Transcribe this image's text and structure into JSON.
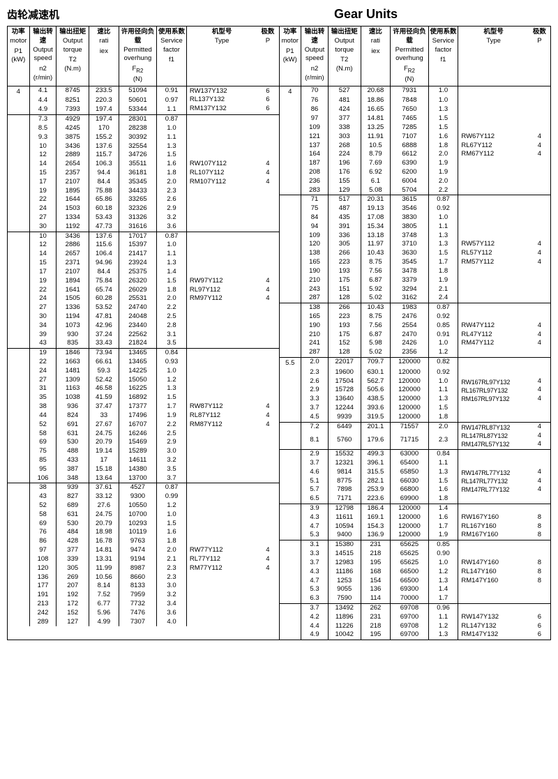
{
  "titles": {
    "left": "齿轮减速机",
    "right": "Gear Units"
  },
  "headers": {
    "p1_cn": "功率",
    "p1_en": "motor",
    "p1_sym": "P1",
    "p1_unit": "(kW)",
    "n2_cn": "输出转速",
    "n2_en": "Output speed",
    "n2_sym": "n2",
    "n2_unit": "(r/min)",
    "t2_cn": "输出扭矩",
    "t2_en": "Output torque",
    "t2_sym": "T2",
    "t2_unit": "(N.m)",
    "i_cn": "速比",
    "i_en": "rati",
    "i_sym": "iex",
    "fr_cn": "许用径向负载",
    "fr_en": "Permitted overhung",
    "fr_sym": "F",
    "fr_sub": "R2",
    "fr_unit": "(N)",
    "f1_cn": "使用系数",
    "f1_en": "Service factor",
    "f1_sym": "f1",
    "type_cn": "机型号",
    "type_en": "Type",
    "p_cn": "极数",
    "p_en": "P"
  },
  "left": {
    "motor": "4",
    "groups": [
      {
        "types": [
          "RW137Y132",
          "RL137Y132",
          "RM137Y132"
        ],
        "p": [
          "6",
          "6",
          "6"
        ],
        "rows": [
          [
            "4.1",
            "8745",
            "233.5",
            "51094",
            "0.91"
          ],
          [
            "4.4",
            "8251",
            "220.3",
            "50601",
            "0.97"
          ],
          [
            "4.9",
            "7393",
            "197.4",
            "53344",
            "1.1"
          ]
        ]
      },
      {
        "types": [
          "RW107Y112",
          "RL107Y112",
          "RM107Y112"
        ],
        "p": [
          "4",
          "4",
          "4"
        ],
        "rows": [
          [
            "7.3",
            "4929",
            "197.4",
            "28301",
            "0.87"
          ],
          [
            "8.5",
            "4245",
            "170",
            "28238",
            "1.0"
          ],
          [
            "9.3",
            "3875",
            "155.2",
            "30392",
            "1.1"
          ],
          [
            "10",
            "3436",
            "137.6",
            "32554",
            "1.3"
          ],
          [
            "12",
            "2889",
            "115.7",
            "34726",
            "1.5"
          ],
          [
            "14",
            "2654",
            "106.3",
            "35511",
            "1.6"
          ],
          [
            "15",
            "2357",
            "94.4",
            "36181",
            "1.8"
          ],
          [
            "17",
            "2107",
            "84.4",
            "35345",
            "2.0"
          ],
          [
            "19",
            "1895",
            "75.88",
            "34433",
            "2.3"
          ],
          [
            "22",
            "1644",
            "65.86",
            "33265",
            "2.6"
          ],
          [
            "24",
            "1503",
            "60.18",
            "32326",
            "2.9"
          ],
          [
            "27",
            "1334",
            "53.43",
            "31326",
            "3.2"
          ],
          [
            "30",
            "1192",
            "47.73",
            "31616",
            "3.6"
          ]
        ]
      },
      {
        "types": [
          "RW97Y112",
          "RL97Y112",
          "RM97Y112"
        ],
        "p": [
          "4",
          "4",
          "4"
        ],
        "rows": [
          [
            "10",
            "3436",
            "137.6",
            "17017",
            "0.87"
          ],
          [
            "12",
            "2886",
            "115.6",
            "15397",
            "1.0"
          ],
          [
            "14",
            "2657",
            "106.4",
            "21417",
            "1.1"
          ],
          [
            "15",
            "2371",
            "94.96",
            "23924",
            "1.3"
          ],
          [
            "17",
            "2107",
            "84.4",
            "25375",
            "1.4"
          ],
          [
            "19",
            "1894",
            "75.84",
            "26320",
            "1.5"
          ],
          [
            "22",
            "1641",
            "65.74",
            "26029",
            "1.8"
          ],
          [
            "24",
            "1505",
            "60.28",
            "25531",
            "2.0"
          ],
          [
            "27",
            "1336",
            "53.52",
            "24740",
            "2.2"
          ],
          [
            "30",
            "1194",
            "47.81",
            "24048",
            "2.5"
          ],
          [
            "34",
            "1073",
            "42.96",
            "23440",
            "2.8"
          ],
          [
            "39",
            "930",
            "37.24",
            "22562",
            "3.1"
          ],
          [
            "43",
            "835",
            "33.43",
            "21824",
            "3.5"
          ]
        ]
      },
      {
        "types": [
          "RW87Y112",
          "RL87Y112",
          "RM87Y112"
        ],
        "p": [
          "4",
          "4",
          "4"
        ],
        "rows": [
          [
            "19",
            "1846",
            "73.94",
            "13465",
            "0.84"
          ],
          [
            "22",
            "1663",
            "66.61",
            "13465",
            "0.93"
          ],
          [
            "24",
            "1481",
            "59.3",
            "14225",
            "1.0"
          ],
          [
            "27",
            "1309",
            "52.42",
            "15050",
            "1.2"
          ],
          [
            "31",
            "1163",
            "46.58",
            "16225",
            "1.3"
          ],
          [
            "35",
            "1038",
            "41.59",
            "16892",
            "1.5"
          ],
          [
            "38",
            "936",
            "37.47",
            "17377",
            "1.7"
          ],
          [
            "44",
            "824",
            "33",
            "17496",
            "1.9"
          ],
          [
            "52",
            "691",
            "27.67",
            "16707",
            "2.2"
          ],
          [
            "58",
            "631",
            "24.75",
            "16246",
            "2.5"
          ],
          [
            "69",
            "530",
            "20.79",
            "15469",
            "2.9"
          ],
          [
            "75",
            "488",
            "19.14",
            "15289",
            "3.0"
          ],
          [
            "85",
            "433",
            "17",
            "14611",
            "3.2"
          ],
          [
            "95",
            "387",
            "15.18",
            "14380",
            "3.5"
          ],
          [
            "106",
            "348",
            "13.64",
            "13700",
            "3.7"
          ]
        ]
      },
      {
        "types": [
          "RW77Y112",
          "RL77Y112",
          "RM77Y112"
        ],
        "p": [
          "4",
          "4",
          "4"
        ],
        "rows": [
          [
            "38",
            "939",
            "37.61",
            "4527",
            "0.87"
          ],
          [
            "43",
            "827",
            "33.12",
            "9300",
            "0.99"
          ],
          [
            "52",
            "689",
            "27.6",
            "10550",
            "1.2"
          ],
          [
            "58",
            "631",
            "24.75",
            "10700",
            "1.0"
          ],
          [
            "69",
            "530",
            "20.79",
            "10293",
            "1.5"
          ],
          [
            "76",
            "484",
            "18.98",
            "10119",
            "1.6"
          ],
          [
            "86",
            "428",
            "16.78",
            "9763",
            "1.8"
          ],
          [
            "97",
            "377",
            "14.81",
            "9474",
            "2.0"
          ],
          [
            "108",
            "339",
            "13.31",
            "9194",
            "2.1"
          ],
          [
            "120",
            "305",
            "11.99",
            "8987",
            "2.3"
          ],
          [
            "136",
            "269",
            "10.56",
            "8660",
            "2.3"
          ],
          [
            "177",
            "207",
            "8.14",
            "8133",
            "3.0"
          ],
          [
            "191",
            "192",
            "7.52",
            "7959",
            "3.2"
          ],
          [
            "213",
            "172",
            "6.77",
            "7732",
            "3.4"
          ],
          [
            "242",
            "152",
            "5.96",
            "7476",
            "3.6"
          ],
          [
            "289",
            "127",
            "4.99",
            "7307",
            "4.0"
          ]
        ]
      }
    ]
  },
  "right": {
    "motorA": "4",
    "motorB": "5.5",
    "groups": [
      {
        "motor": "4",
        "types": [
          "RW67Y112",
          "RL67Y112",
          "RM67Y112"
        ],
        "p": [
          "4",
          "4",
          "4"
        ],
        "rows": [
          [
            "70",
            "527",
            "20.68",
            "7931",
            "1.0"
          ],
          [
            "76",
            "481",
            "18.86",
            "7848",
            "1.0"
          ],
          [
            "86",
            "424",
            "16.65",
            "7650",
            "1.3"
          ],
          [
            "97",
            "377",
            "14.81",
            "7465",
            "1.5"
          ],
          [
            "109",
            "338",
            "13.25",
            "7285",
            "1.5"
          ],
          [
            "121",
            "303",
            "11.91",
            "7107",
            "1.6"
          ],
          [
            "137",
            "268",
            "10.5",
            "6888",
            "1.8"
          ],
          [
            "164",
            "224",
            "8.79",
            "6612",
            "2.0"
          ],
          [
            "187",
            "196",
            "7.69",
            "6390",
            "1.9"
          ],
          [
            "208",
            "176",
            "6.92",
            "6200",
            "1.9"
          ],
          [
            "236",
            "155",
            "6.1",
            "6004",
            "2.0"
          ],
          [
            "283",
            "129",
            "5.08",
            "5704",
            "2.2"
          ]
        ]
      },
      {
        "types": [
          "RW57Y112",
          "RL57Y112",
          "RM57Y112"
        ],
        "p": [
          "4",
          "4",
          "4"
        ],
        "rows": [
          [
            "71",
            "517",
            "20.31",
            "3615",
            "0.87"
          ],
          [
            "75",
            "487",
            "19.13",
            "3546",
            "0.92"
          ],
          [
            "84",
            "435",
            "17.08",
            "3830",
            "1.0"
          ],
          [
            "94",
            "391",
            "15.34",
            "3805",
            "1.1"
          ],
          [
            "109",
            "336",
            "13.18",
            "3748",
            "1.3"
          ],
          [
            "120",
            "305",
            "11.97",
            "3710",
            "1.3"
          ],
          [
            "138",
            "266",
            "10.43",
            "3630",
            "1.5"
          ],
          [
            "165",
            "223",
            "8.75",
            "3545",
            "1.7"
          ],
          [
            "190",
            "193",
            "7.56",
            "3478",
            "1.8"
          ],
          [
            "210",
            "175",
            "6.87",
            "3379",
            "1.9"
          ],
          [
            "243",
            "151",
            "5.92",
            "3294",
            "2.1"
          ],
          [
            "287",
            "128",
            "5.02",
            "3162",
            "2.4"
          ]
        ]
      },
      {
        "types": [
          "RW47Y112",
          "RL47Y112",
          "RM47Y112"
        ],
        "p": [
          "4",
          "4",
          "4"
        ],
        "rows": [
          [
            "138",
            "266",
            "10.43",
            "1983",
            "0.87"
          ],
          [
            "165",
            "223",
            "8.75",
            "2476",
            "0.92"
          ],
          [
            "190",
            "193",
            "7.56",
            "2554",
            "0.85"
          ],
          [
            "210",
            "175",
            "6.87",
            "2470",
            "0.91"
          ],
          [
            "241",
            "152",
            "5.98",
            "2426",
            "1.0"
          ],
          [
            "287",
            "128",
            "5.02",
            "2356",
            "1.2"
          ]
        ]
      },
      {
        "motor": "5.5",
        "types": [
          "RW167RL97Y132",
          "RL167RL97Y132",
          "RM167RL97Y132"
        ],
        "p": [
          "4",
          "4",
          "4"
        ],
        "rows": [
          [
            "2.0",
            "22017",
            "709.7",
            "120000",
            "0.82"
          ],
          [
            "2.3",
            "19600",
            "630.1",
            "120000",
            "0.92"
          ],
          [
            "2.6",
            "17504",
            "562.7",
            "120000",
            "1.0"
          ],
          [
            "2.9",
            "15728",
            "505.6",
            "120000",
            "1.1"
          ],
          [
            "3.3",
            "13640",
            "438.5",
            "120000",
            "1.3"
          ],
          [
            "3.7",
            "12244",
            "393.6",
            "120000",
            "1.5"
          ],
          [
            "4.5",
            "9939",
            "319.5",
            "120000",
            "1.8"
          ]
        ]
      },
      {
        "types": [
          "RW147RL87Y132",
          "RL147RL87Y132",
          "RM147RL57Y132"
        ],
        "p": [
          "4",
          "4",
          "4"
        ],
        "rows": [
          [
            "7.2",
            "6449",
            "201.1",
            "71557",
            "2.0"
          ],
          [
            "8.1",
            "5760",
            "179.6",
            "71715",
            "2.3"
          ]
        ]
      },
      {
        "types": [
          "RW147RL77Y132",
          "RL147RL77Y132",
          "RM147RL77Y132"
        ],
        "p": [
          "4",
          "4",
          "4"
        ],
        "rows": [
          [
            "2.9",
            "15532",
            "499.3",
            "63000",
            "0.84"
          ],
          [
            "3.7",
            "12321",
            "396.1",
            "65400",
            "1.1"
          ],
          [
            "4.6",
            "9814",
            "315.5",
            "65850",
            "1.3"
          ],
          [
            "5.1",
            "8775",
            "282.1",
            "66030",
            "1.5"
          ],
          [
            "5.7",
            "7898",
            "253.9",
            "66800",
            "1.6"
          ],
          [
            "6.5",
            "7171",
            "223.6",
            "69900",
            "1.8"
          ]
        ]
      },
      {
        "types": [
          "RW167Y160",
          "RL167Y160",
          "RM167Y160"
        ],
        "p": [
          "8",
          "8",
          "8"
        ],
        "rows": [
          [
            "3.9",
            "12798",
            "186.4",
            "120000",
            "1.4"
          ],
          [
            "4.3",
            "11611",
            "169.1",
            "120000",
            "1.6"
          ],
          [
            "4.7",
            "10594",
            "154.3",
            "120000",
            "1.7"
          ],
          [
            "5.3",
            "9400",
            "136.9",
            "120000",
            "1.9"
          ]
        ]
      },
      {
        "types": [
          "RW147Y160",
          "RL147Y160",
          "RM147Y160"
        ],
        "p": [
          "8",
          "8",
          "8"
        ],
        "rows": [
          [
            "3.1",
            "15380",
            "231",
            "65625",
            "0.85"
          ],
          [
            "3.3",
            "14515",
            "218",
            "65625",
            "0.90"
          ],
          [
            "3.7",
            "12983",
            "195",
            "65625",
            "1.0"
          ],
          [
            "4.3",
            "11186",
            "168",
            "66500",
            "1.2"
          ],
          [
            "4.7",
            "1253",
            "154",
            "66500",
            "1.3"
          ],
          [
            "5.3",
            "9055",
            "136",
            "69300",
            "1.4"
          ],
          [
            "6.3",
            "7590",
            "114",
            "70000",
            "1.7"
          ]
        ]
      },
      {
        "types": [
          "RW147Y132",
          "RL147Y132",
          "RM147Y132"
        ],
        "p": [
          "6",
          "6",
          "6"
        ],
        "rows": [
          [
            "3.7",
            "13492",
            "262",
            "69708",
            "0.96"
          ],
          [
            "4.2",
            "11896",
            "231",
            "69700",
            "1.1"
          ],
          [
            "4.4",
            "11226",
            "218",
            "69708",
            "1.2"
          ],
          [
            "4.9",
            "10042",
            "195",
            "69700",
            "1.3"
          ]
        ]
      }
    ]
  }
}
